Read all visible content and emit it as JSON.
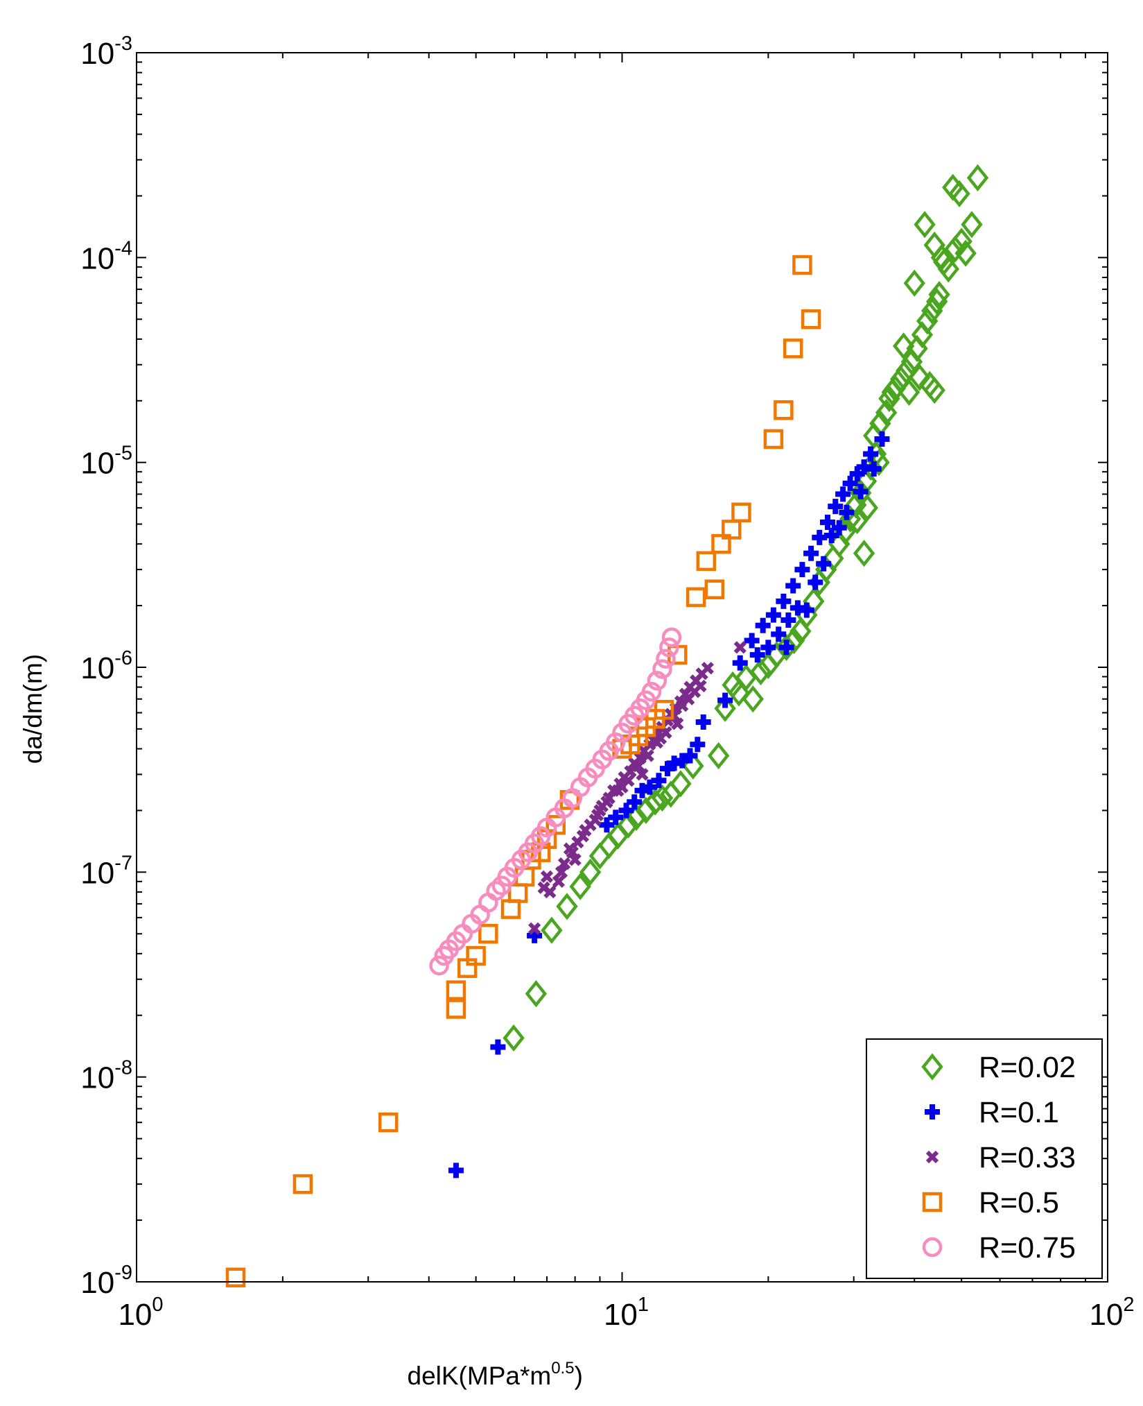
{
  "chart_data": {
    "type": "scatter",
    "title": "",
    "xscale": "log",
    "yscale": "log",
    "xlim": [
      1,
      100
    ],
    "ylim": [
      1e-09,
      0.001
    ],
    "xlabel": {
      "main": "delK(MPa*m",
      "exp": "0.5",
      "close": ")"
    },
    "ylabel": "da/dm(m)",
    "xticks": [
      {
        "base": "10",
        "exp": "0"
      },
      {
        "base": "10",
        "exp": "1"
      },
      {
        "base": "10",
        "exp": "2"
      }
    ],
    "yticks": [
      {
        "base": "10",
        "exp": "-9"
      },
      {
        "base": "10",
        "exp": "-8"
      },
      {
        "base": "10",
        "exp": "-7"
      },
      {
        "base": "10",
        "exp": "-6"
      },
      {
        "base": "10",
        "exp": "-5"
      },
      {
        "base": "10",
        "exp": "-4"
      },
      {
        "base": "10",
        "exp": "-3"
      }
    ],
    "legend_position": "bottom-right",
    "series": [
      {
        "name": "R=0.02",
        "marker": "diamond",
        "color": "#4aa51f",
        "points": [
          [
            5.98,
            1.55e-08
          ],
          [
            6.65,
            2.55e-08
          ],
          [
            7.16,
            5.2e-08
          ],
          [
            7.7,
            6.8e-08
          ],
          [
            8.2,
            8.5e-08
          ],
          [
            8.6,
            1e-07
          ],
          [
            9.0,
            1.2e-07
          ],
          [
            9.4,
            1.35e-07
          ],
          [
            9.8,
            1.5e-07
          ],
          [
            10.3,
            1.7e-07
          ],
          [
            10.7,
            1.85e-07
          ],
          [
            11.2,
            2e-07
          ],
          [
            11.7,
            2.2e-07
          ],
          [
            12.1,
            2.3e-07
          ],
          [
            12.6,
            2.4e-07
          ],
          [
            13.2,
            2.7e-07
          ],
          [
            14.0,
            3.3e-07
          ],
          [
            15.8,
            3.7e-07
          ],
          [
            16.3,
            6.3e-07
          ],
          [
            16.9,
            8.2e-07
          ],
          [
            17.4,
            7.5e-07
          ],
          [
            18.0,
            8.9e-07
          ],
          [
            18.6,
            7e-07
          ],
          [
            19.3,
            9.5e-07
          ],
          [
            20.0,
            1.02e-06
          ],
          [
            20.8,
            1.15e-06
          ],
          [
            21.8,
            1.25e-06
          ],
          [
            22.6,
            1.35e-06
          ],
          [
            23.3,
            1.5e-06
          ],
          [
            24.0,
            1.8e-06
          ],
          [
            24.8,
            2.1e-06
          ],
          [
            25.5,
            2.6e-06
          ],
          [
            26.3,
            3e-06
          ],
          [
            27.2,
            3.4e-06
          ],
          [
            28.0,
            4e-06
          ],
          [
            28.8,
            4.6e-06
          ],
          [
            29.5,
            5.3e-06
          ],
          [
            30.3,
            6.2e-06
          ],
          [
            31.0,
            7.1e-06
          ],
          [
            31.8,
            8.1e-06
          ],
          [
            32.5,
            9.5e-06
          ],
          [
            33.3,
            1.1e-05
          ],
          [
            33.0,
            1.35e-05
          ],
          [
            34.0,
            1.55e-05
          ],
          [
            35.0,
            1.75e-05
          ],
          [
            35.5,
            2.05e-05
          ],
          [
            36.5,
            2.3e-05
          ],
          [
            37.5,
            2.55e-05
          ],
          [
            38.5,
            2.8e-05
          ],
          [
            39.5,
            3.1e-05
          ],
          [
            40.5,
            3.6e-05
          ],
          [
            41.5,
            4.2e-05
          ],
          [
            42.5,
            4.9e-05
          ],
          [
            43.5,
            5.5e-05
          ],
          [
            44.5,
            6.1e-05
          ],
          [
            38.0,
            3.7e-05
          ],
          [
            40.0,
            7.5e-05
          ],
          [
            42.0,
            0.000145
          ],
          [
            44.0,
            0.000115
          ],
          [
            45.5,
            0.0001
          ],
          [
            47.0,
            8.8e-05
          ],
          [
            48.0,
            0.00022
          ],
          [
            49.5,
            0.000205
          ],
          [
            51.0,
            0.000105
          ],
          [
            52.5,
            0.000145
          ],
          [
            54.0,
            0.000245
          ],
          [
            30.5,
            5.2e-06
          ],
          [
            31.5,
            3.6e-06
          ],
          [
            32.0,
            6e-06
          ],
          [
            33.8,
            1e-05
          ],
          [
            36.0,
            2.2e-05
          ],
          [
            39.0,
            2.2e-05
          ],
          [
            43.0,
            2.4e-05
          ],
          [
            44.0,
            2.25e-05
          ],
          [
            41.0,
            2.6e-05
          ],
          [
            45.0,
            6.6e-05
          ],
          [
            46.0,
            9.5e-05
          ],
          [
            48.5,
            0.00011
          ],
          [
            50.0,
            0.00012
          ]
        ]
      },
      {
        "name": "R=0.1",
        "marker": "plus",
        "color": "#0000f0",
        "points": [
          [
            4.55,
            3.5e-09
          ],
          [
            5.55,
            1.4e-08
          ],
          [
            6.6,
            4.9e-08
          ],
          [
            9.3,
            1.7e-07
          ],
          [
            9.7,
            1.85e-07
          ],
          [
            10.2,
            2e-07
          ],
          [
            10.6,
            2.2e-07
          ],
          [
            11.0,
            2.5e-07
          ],
          [
            11.4,
            2.6e-07
          ],
          [
            11.9,
            2.8e-07
          ],
          [
            12.4,
            3.2e-07
          ],
          [
            12.8,
            3.4e-07
          ],
          [
            13.3,
            3.5e-07
          ],
          [
            13.8,
            3.7e-07
          ],
          [
            14.3,
            4.2e-07
          ],
          [
            14.7,
            5.4e-07
          ],
          [
            16.3,
            6.9e-07
          ],
          [
            17.5,
            1.05e-06
          ],
          [
            18.5,
            1.35e-06
          ],
          [
            19.5,
            1.6e-06
          ],
          [
            20.5,
            1.8e-06
          ],
          [
            21.5,
            2.1e-06
          ],
          [
            22.5,
            2.5e-06
          ],
          [
            23.5,
            3e-06
          ],
          [
            24.5,
            3.6e-06
          ],
          [
            25.5,
            4.3e-06
          ],
          [
            26.5,
            5.1e-06
          ],
          [
            27.5,
            6.1e-06
          ],
          [
            28.5,
            7e-06
          ],
          [
            29.5,
            7.9e-06
          ],
          [
            30.5,
            8.8e-06
          ],
          [
            31.5,
            9.5e-06
          ],
          [
            32.5,
            1.1e-05
          ],
          [
            34.3,
            1.3e-05
          ],
          [
            20.0,
            1.25e-06
          ],
          [
            21.0,
            1.45e-06
          ],
          [
            22.0,
            1.7e-06
          ],
          [
            23.0,
            1.95e-06
          ],
          [
            25.0,
            2.6e-06
          ],
          [
            27.0,
            4.4e-06
          ],
          [
            29.0,
            5.7e-06
          ],
          [
            31.0,
            7.2e-06
          ],
          [
            33.0,
            9.3e-06
          ],
          [
            19.0,
            1.15e-06
          ],
          [
            21.8,
            1.25e-06
          ],
          [
            24.0,
            1.9e-06
          ],
          [
            26.0,
            3.2e-06
          ],
          [
            28.0,
            4.8e-06
          ]
        ]
      },
      {
        "name": "R=0.33",
        "marker": "cross",
        "color": "#7b2b8c",
        "points": [
          [
            6.6,
            5.3e-08
          ],
          [
            6.9,
            8.4e-08
          ],
          [
            7.1,
            8e-08
          ],
          [
            7.4,
            9e-08
          ],
          [
            7.6,
            1.1e-07
          ],
          [
            7.9,
            1.25e-07
          ],
          [
            8.1,
            1.4e-07
          ],
          [
            8.4,
            1.6e-07
          ],
          [
            8.6,
            1.7e-07
          ],
          [
            8.9,
            1.9e-07
          ],
          [
            9.1,
            2.1e-07
          ],
          [
            9.4,
            2.3e-07
          ],
          [
            9.6,
            2.5e-07
          ],
          [
            9.9,
            2.7e-07
          ],
          [
            10.1,
            2.9e-07
          ],
          [
            10.4,
            3.1e-07
          ],
          [
            10.6,
            3.4e-07
          ],
          [
            10.9,
            3.6e-07
          ],
          [
            11.1,
            3.9e-07
          ],
          [
            11.4,
            4.2e-07
          ],
          [
            11.6,
            4.4e-07
          ],
          [
            11.9,
            4.8e-07
          ],
          [
            12.1,
            5.1e-07
          ],
          [
            12.4,
            5.5e-07
          ],
          [
            12.6,
            5.9e-07
          ],
          [
            12.9,
            6.3e-07
          ],
          [
            13.2,
            6.8e-07
          ],
          [
            13.5,
            7.4e-07
          ],
          [
            13.8,
            8e-07
          ],
          [
            14.2,
            8.6e-07
          ],
          [
            14.6,
            9.3e-07
          ],
          [
            15.0,
            9.9e-07
          ],
          [
            17.5,
            1.25e-06
          ],
          [
            8.3,
            1.5e-07
          ],
          [
            8.8,
            1.8e-07
          ],
          [
            9.3,
            2.2e-07
          ],
          [
            9.8,
            2.5e-07
          ],
          [
            10.3,
            2.8e-07
          ],
          [
            10.8,
            3.3e-07
          ],
          [
            11.3,
            3.7e-07
          ],
          [
            11.8,
            4.3e-07
          ],
          [
            12.3,
            4.8e-07
          ],
          [
            12.8,
            5.8e-07
          ],
          [
            13.3,
            6.5e-07
          ],
          [
            13.7,
            7e-07
          ],
          [
            14.1,
            7.6e-07
          ],
          [
            14.5,
            8.1e-07
          ],
          [
            7.8,
            1.3e-07
          ],
          [
            8.0,
            1.15e-07
          ],
          [
            7.5,
            1e-07
          ],
          [
            7.0,
            9.5e-08
          ],
          [
            9.0,
            2e-07
          ],
          [
            10.0,
            2.6e-07
          ],
          [
            11.0,
            3e-07
          ],
          [
            12.0,
            4.5e-07
          ],
          [
            13.0,
            5.3e-07
          ]
        ]
      },
      {
        "name": "R=0.5",
        "marker": "square",
        "color": "#f07800",
        "points": [
          [
            1.6,
            1.05e-09
          ],
          [
            2.2,
            3e-09
          ],
          [
            3.3,
            6e-09
          ],
          [
            4.55,
            2.15e-08
          ],
          [
            4.55,
            2.65e-08
          ],
          [
            4.8,
            3.4e-08
          ],
          [
            5.0,
            3.9e-08
          ],
          [
            5.3,
            5e-08
          ],
          [
            5.9,
            6.6e-08
          ],
          [
            6.1,
            7.9e-08
          ],
          [
            6.3,
            9.5e-08
          ],
          [
            6.5,
            1.15e-07
          ],
          [
            6.8,
            1.25e-07
          ],
          [
            7.0,
            1.45e-07
          ],
          [
            7.3,
            1.7e-07
          ],
          [
            7.8,
            2.25e-07
          ],
          [
            10.0,
            4e-07
          ],
          [
            10.4,
            4.2e-07
          ],
          [
            10.8,
            4.6e-07
          ],
          [
            11.2,
            5.1e-07
          ],
          [
            11.7,
            5.6e-07
          ],
          [
            12.2,
            6.2e-07
          ],
          [
            13.0,
            1.15e-06
          ],
          [
            14.2,
            2.2e-06
          ],
          [
            14.9,
            3.3e-06
          ],
          [
            15.5,
            2.4e-06
          ],
          [
            16.0,
            4e-06
          ],
          [
            16.8,
            4.7e-06
          ],
          [
            17.6,
            5.7e-06
          ],
          [
            20.5,
            1.3e-05
          ],
          [
            21.5,
            1.8e-05
          ],
          [
            22.5,
            3.6e-05
          ],
          [
            23.5,
            9.2e-05
          ],
          [
            24.5,
            5e-05
          ]
        ]
      },
      {
        "name": "R=0.75",
        "marker": "circle",
        "color": "#f98cbe",
        "points": [
          [
            4.2,
            3.5e-08
          ],
          [
            4.3,
            3.9e-08
          ],
          [
            4.4,
            4.2e-08
          ],
          [
            4.55,
            4.6e-08
          ],
          [
            4.7,
            5e-08
          ],
          [
            4.9,
            5.6e-08
          ],
          [
            5.1,
            6.2e-08
          ],
          [
            5.3,
            7.1e-08
          ],
          [
            5.5,
            8.1e-08
          ],
          [
            5.65,
            8.6e-08
          ],
          [
            5.8,
            9.5e-08
          ],
          [
            6.0,
            1.05e-07
          ],
          [
            6.2,
            1.15e-07
          ],
          [
            6.4,
            1.25e-07
          ],
          [
            6.6,
            1.38e-07
          ],
          [
            6.8,
            1.5e-07
          ],
          [
            7.0,
            1.65e-07
          ],
          [
            7.3,
            1.85e-07
          ],
          [
            7.6,
            2.05e-07
          ],
          [
            7.9,
            2.3e-07
          ],
          [
            8.2,
            2.6e-07
          ],
          [
            8.5,
            2.9e-07
          ],
          [
            8.8,
            3.2e-07
          ],
          [
            9.1,
            3.55e-07
          ],
          [
            9.4,
            3.9e-07
          ],
          [
            9.7,
            4.3e-07
          ],
          [
            10.0,
            4.8e-07
          ],
          [
            10.3,
            5.3e-07
          ],
          [
            10.6,
            5.8e-07
          ],
          [
            10.9,
            6.3e-07
          ],
          [
            11.2,
            6.9e-07
          ],
          [
            11.5,
            7.6e-07
          ],
          [
            11.8,
            8.6e-07
          ],
          [
            12.1,
            9.8e-07
          ],
          [
            12.3,
            1.1e-06
          ],
          [
            12.5,
            1.25e-06
          ],
          [
            12.65,
            1.4e-06
          ]
        ]
      }
    ]
  }
}
